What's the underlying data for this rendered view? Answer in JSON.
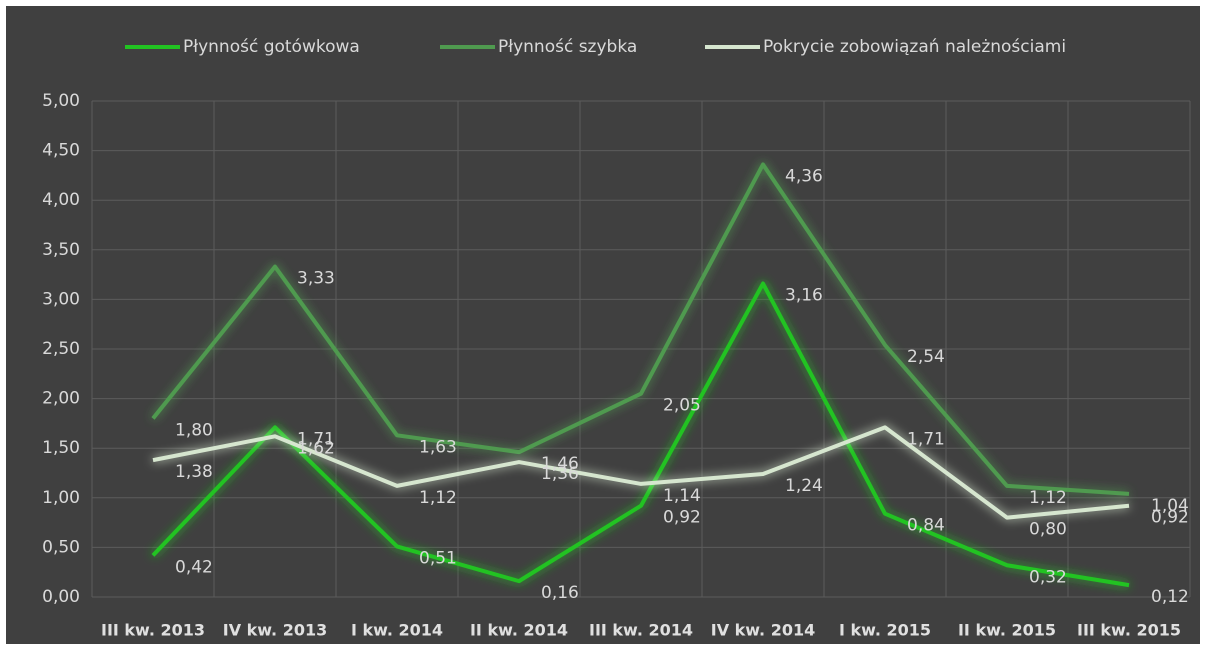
{
  "chart_data": {
    "type": "line",
    "categories": [
      "III kw. 2013",
      "IV kw. 2013",
      "I kw. 2014",
      "II kw. 2014",
      "III kw. 2014",
      "IV kw. 2014",
      "I kw. 2015",
      "II kw. 2015",
      "III kw. 2015"
    ],
    "series": [
      {
        "name": "Płynność gotówkowa",
        "color": "#22c322",
        "values": [
          0.42,
          1.71,
          0.51,
          0.16,
          0.92,
          3.16,
          0.84,
          0.32,
          0.12
        ],
        "value_labels": [
          "0,42",
          "1,71",
          "0,51",
          "0,16",
          "0,92",
          "3,16",
          "0,84",
          "0,32",
          "0,12"
        ]
      },
      {
        "name": "Płynność szybka",
        "color": "#4f9a4f",
        "values": [
          1.8,
          3.33,
          1.63,
          1.46,
          2.05,
          4.36,
          2.54,
          1.12,
          1.04
        ],
        "value_labels": [
          "1,80",
          "3,33",
          "1,63",
          "1,46",
          "2,05",
          "4,36",
          "2,54",
          "1,12",
          "1,04"
        ]
      },
      {
        "name": "Pokrycie zobowiązań należnościami",
        "color": "#d6e6cf",
        "values": [
          1.38,
          1.62,
          1.12,
          1.36,
          1.14,
          1.24,
          1.71,
          0.8,
          0.92
        ],
        "value_labels": [
          "1,38",
          "1,62",
          "1,12",
          "1,36",
          "1,14",
          "1,24",
          "1,71",
          "0,80",
          "0,92"
        ]
      }
    ],
    "ylim": [
      0,
      5
    ],
    "yticks": [
      {
        "value": 0,
        "label": "0,00"
      },
      {
        "value": 0.5,
        "label": "0,50"
      },
      {
        "value": 1,
        "label": "1,00"
      },
      {
        "value": 1.5,
        "label": "1,50"
      },
      {
        "value": 2,
        "label": "2,00"
      },
      {
        "value": 2.5,
        "label": "2,50"
      },
      {
        "value": 3,
        "label": "3,00"
      },
      {
        "value": 3.5,
        "label": "3,50"
      },
      {
        "value": 4,
        "label": "4,00"
      },
      {
        "value": 4.5,
        "label": "4,50"
      },
      {
        "value": 5,
        "label": "5,00"
      }
    ],
    "grid": true,
    "legend": "top"
  }
}
